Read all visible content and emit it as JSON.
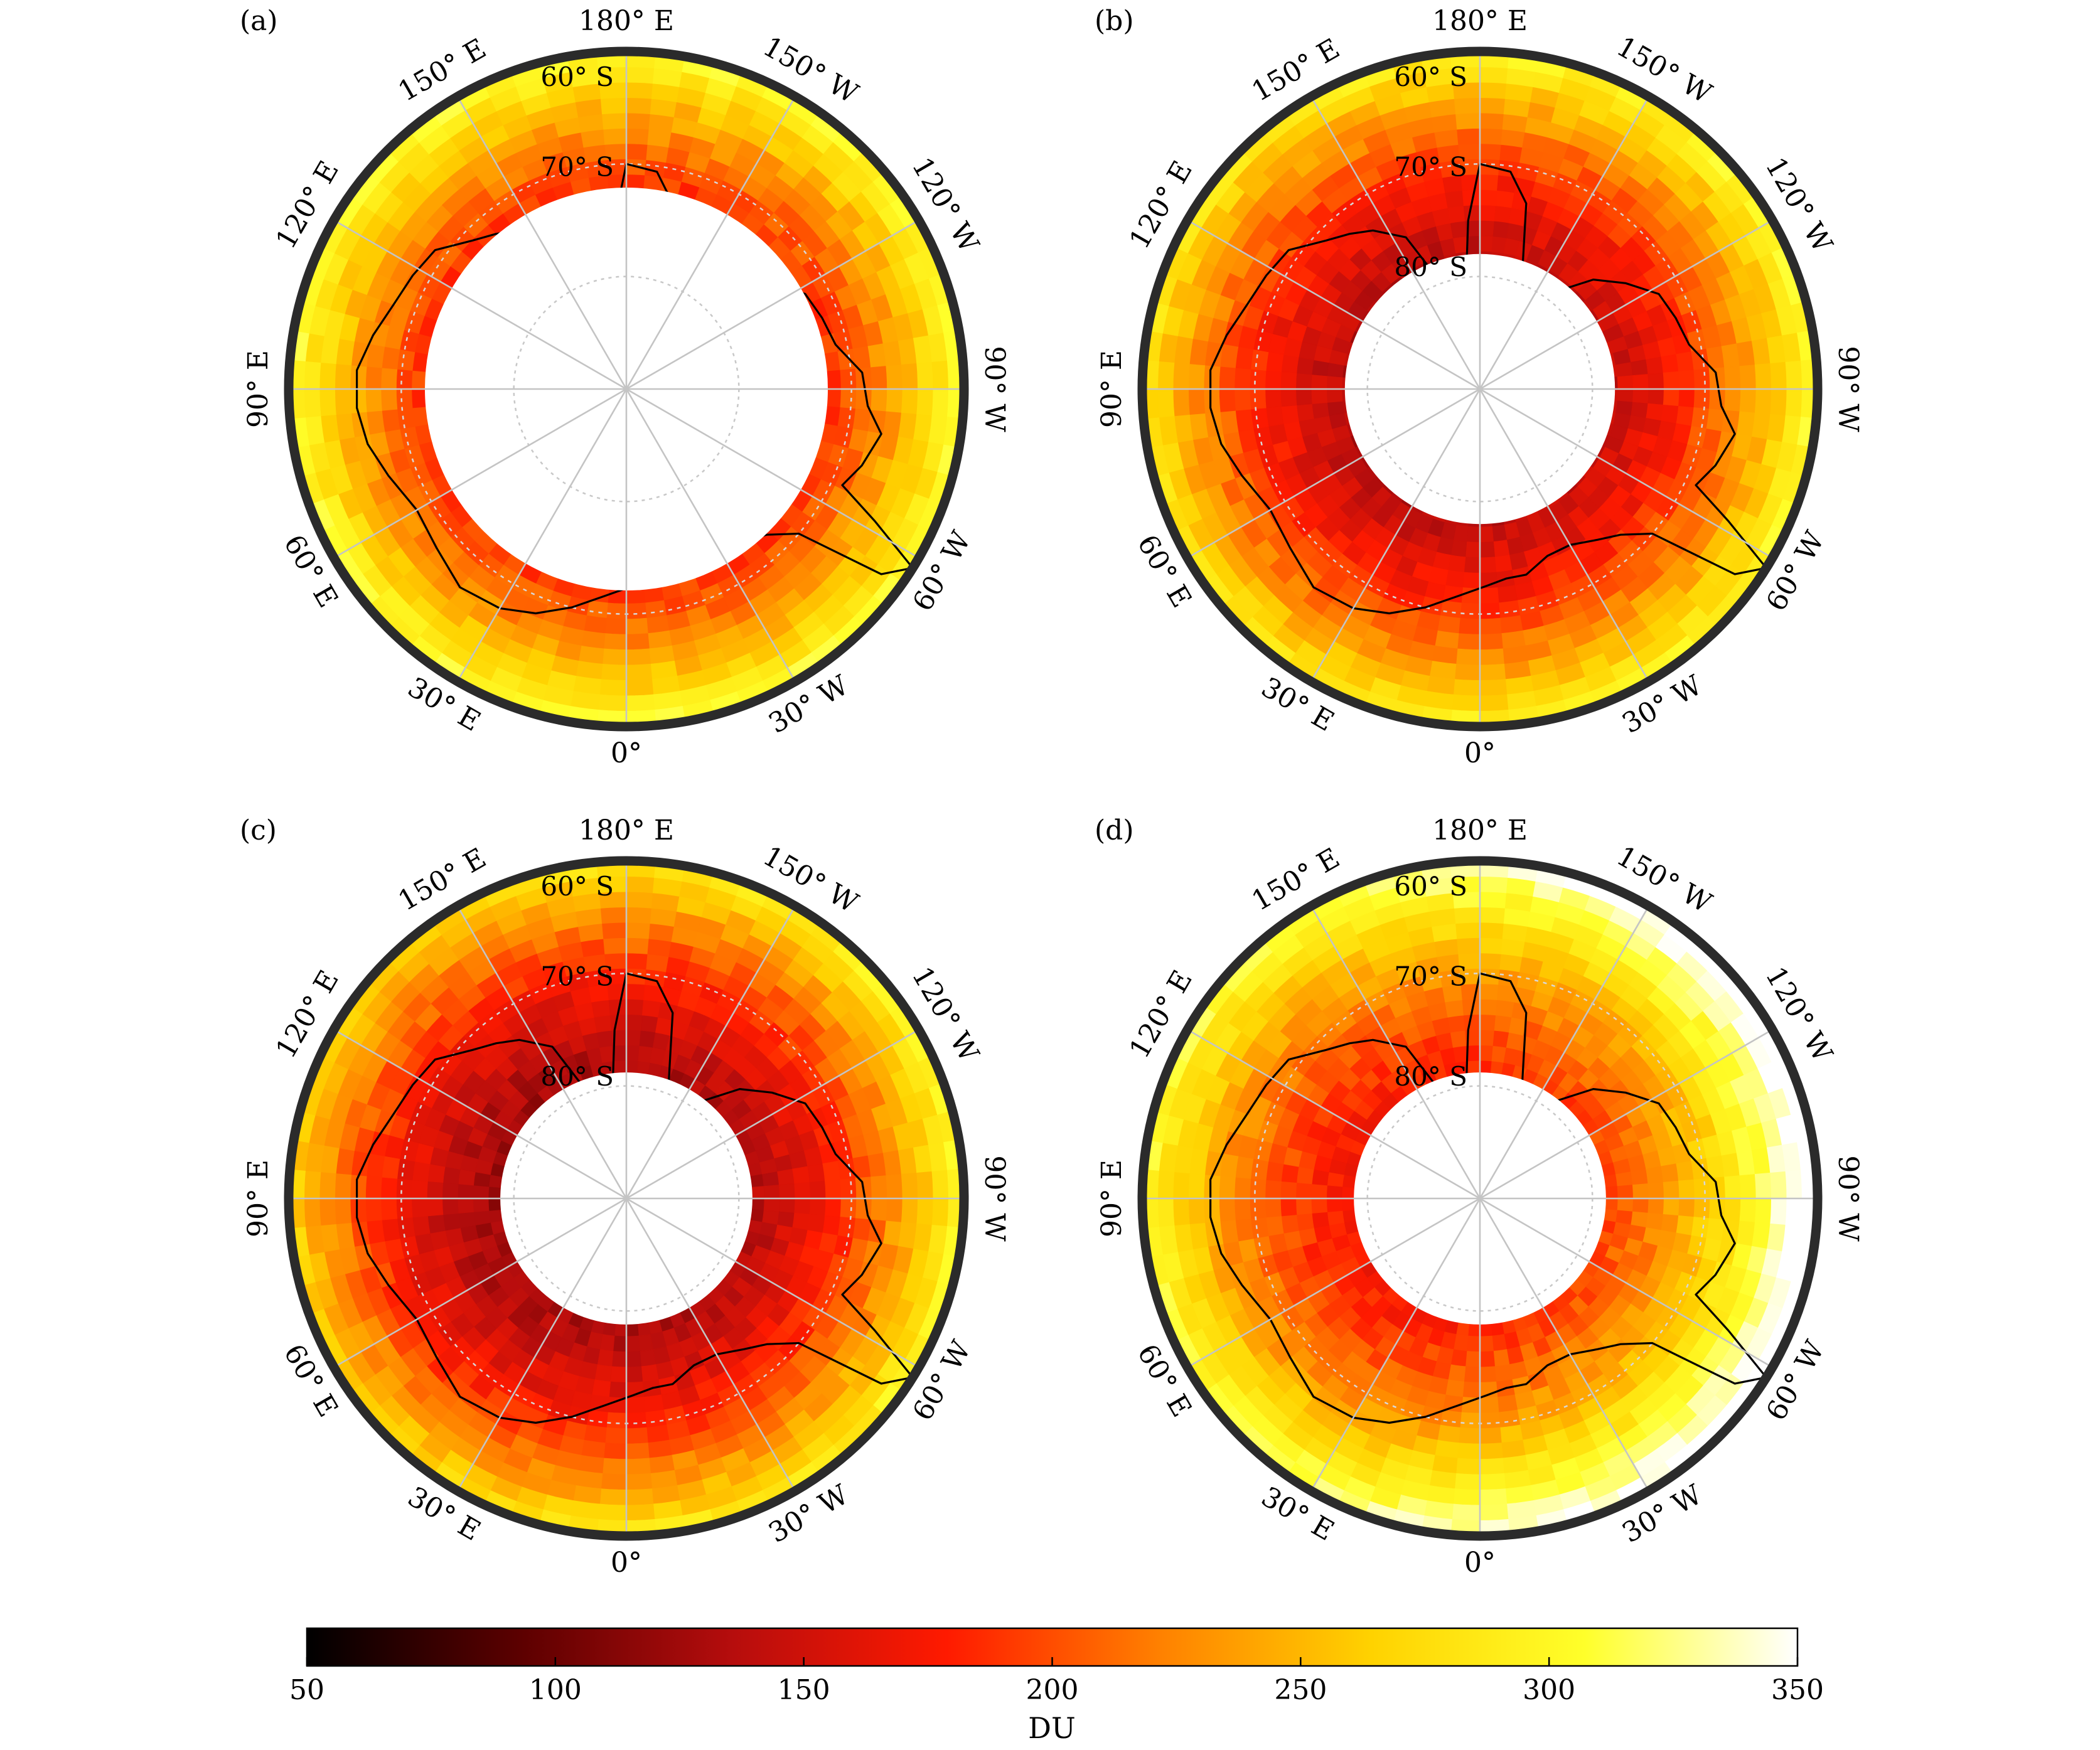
{
  "panels": [
    {
      "letter": "(a)",
      "lat_labels": [
        "60° S",
        "70° S"
      ],
      "hole_deg": 17.9,
      "seed": 11,
      "mix": 0.0
    },
    {
      "letter": "(b)",
      "lat_labels": [
        "60° S",
        "70° S",
        "80° S"
      ],
      "hole_deg": 12.0,
      "seed": 23,
      "mix": 0.35
    },
    {
      "letter": "(c)",
      "lat_labels": [
        "60° S",
        "70° S",
        "80° S"
      ],
      "hole_deg": 11.2,
      "seed": 37,
      "mix": 0.5
    },
    {
      "letter": "(d)",
      "lat_labels": [
        "60° S",
        "70° S",
        "80° S"
      ],
      "hole_deg": 11.2,
      "seed": 53,
      "mix": 1.0
    }
  ],
  "lon_labels": [
    "180° E",
    "150° W",
    "120° W",
    "90° W",
    "60° W",
    "30° W",
    "0°",
    "30° E",
    "60° E",
    "90° E",
    "120° E",
    "150° E"
  ],
  "colorbar": {
    "min": 50,
    "max": 350,
    "ticks": [
      "50",
      "100",
      "150",
      "200",
      "250",
      "300",
      "350"
    ],
    "label": "DU",
    "colors": [
      "#000000",
      "#5c0000",
      "#b60d0d",
      "#ff1a00",
      "#ff8000",
      "#ffd200",
      "#ffff2a",
      "#ffffff"
    ]
  }
}
